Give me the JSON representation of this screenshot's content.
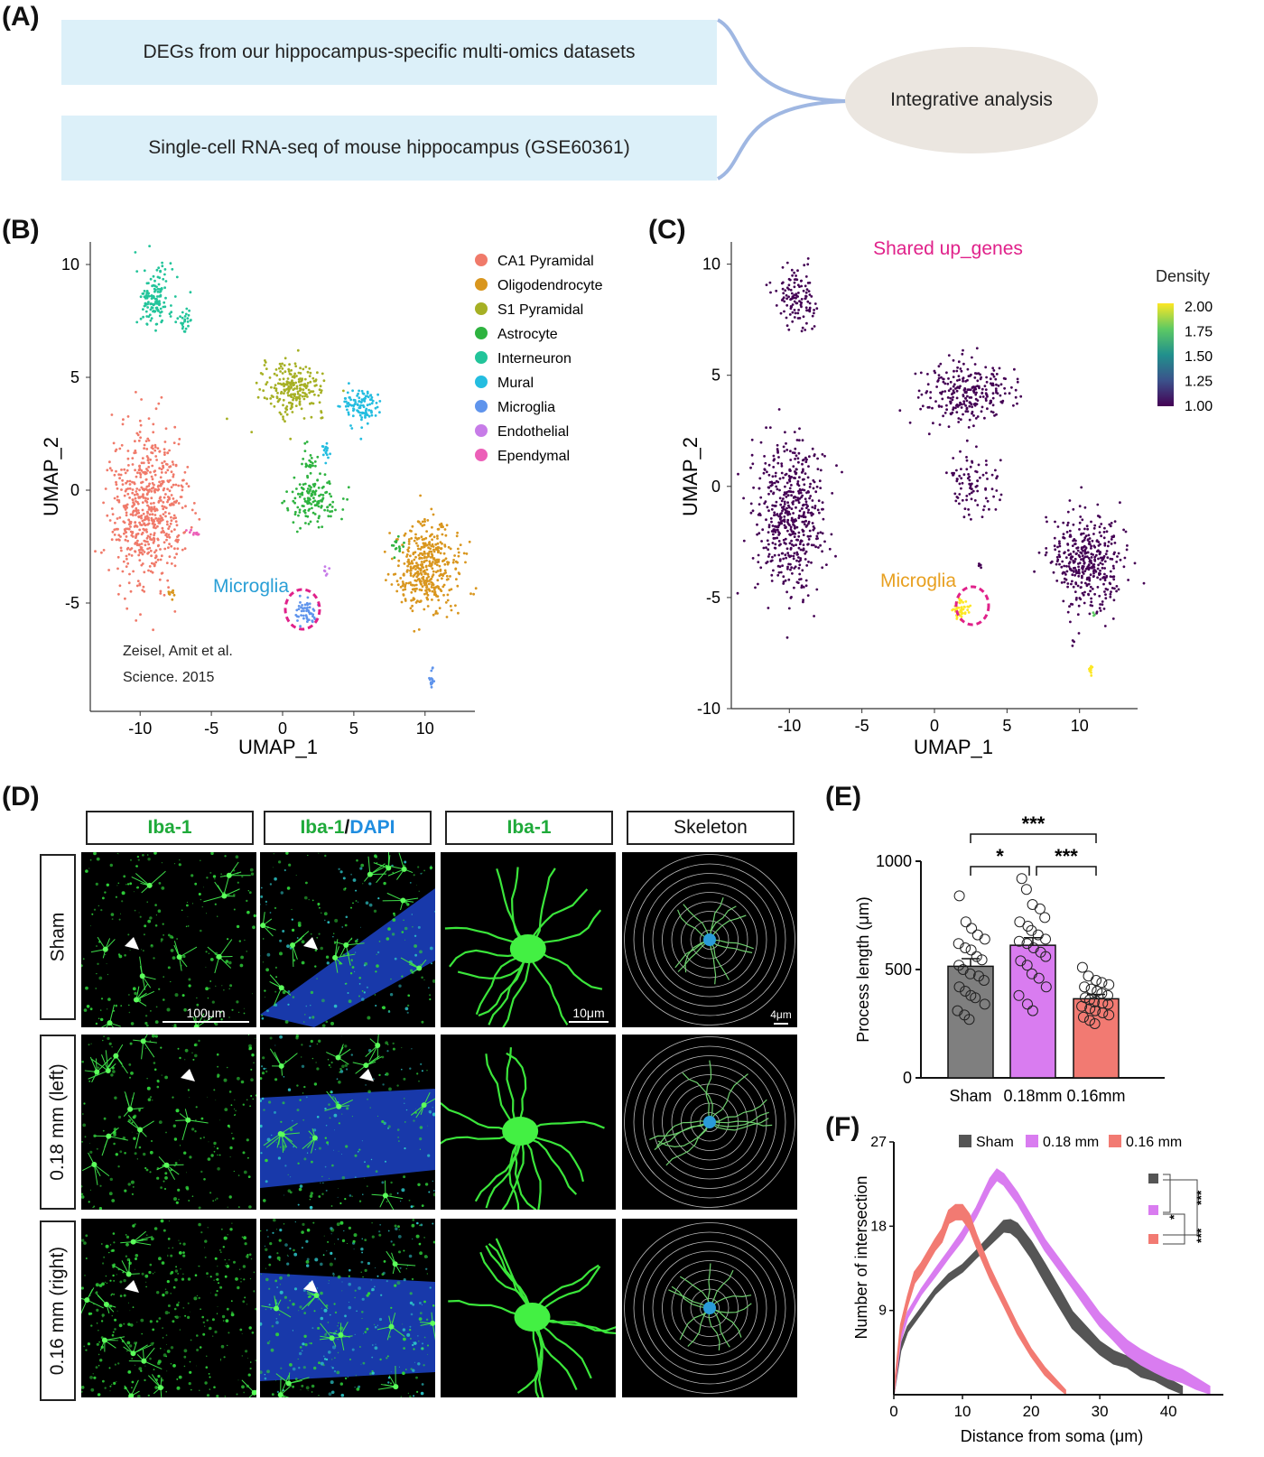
{
  "panelA": {
    "label": "(A)",
    "box1": "DEGs  from  our  hippocampus-specific  multi-omics  datasets",
    "box2": "Single-cell RNA-seq of mouse hippocampus (GSE60361)",
    "ellipse": "Integrative analysis"
  },
  "panelB": {
    "label": "(B)",
    "annotation": "Microglia",
    "citation_line1": "Zeisel, Amit et al.",
    "citation_line2": "Science. 2015"
  },
  "panelC": {
    "label": "(C)",
    "title": "Shared up_genes",
    "annotation": "Microglia",
    "colorbar_title": "Density",
    "colorbar_ticks": [
      "2.00",
      "1.75",
      "1.50",
      "1.25",
      "1.00"
    ]
  },
  "panelD": {
    "label": "(D)",
    "col_headers": [
      "Iba-1",
      "Iba-1",
      "/",
      "DAPI",
      "Iba-1",
      "Skeleton"
    ],
    "row_headers": [
      "Sham",
      "0.18 mm (left)",
      "0.16 mm (right)"
    ],
    "scalebars": [
      "100μm",
      "10μm",
      "4μm"
    ]
  },
  "panelE": {
    "label": "(E)"
  },
  "panelF": {
    "label": "(F)"
  },
  "chart_data": [
    {
      "panel": "B",
      "type": "scatter",
      "xlabel": "UMAP_1",
      "ylabel": "UMAP_2",
      "xticks": [
        -10,
        -5,
        0,
        5,
        10
      ],
      "yticks": [
        10,
        5,
        0,
        -5
      ],
      "xlim": [
        -13.5,
        13.5
      ],
      "ylim": [
        -9.8,
        11
      ],
      "legend_position": "top-right",
      "series": [
        {
          "name": "CA1 Pyramidal",
          "color": "#f07a6a"
        },
        {
          "name": "Oligodendrocyte",
          "color": "#d9961e"
        },
        {
          "name": "S1 Pyramidal",
          "color": "#a6b024"
        },
        {
          "name": "Astrocyte",
          "color": "#2eb340"
        },
        {
          "name": "Interneuron",
          "color": "#22c49a"
        },
        {
          "name": "Mural",
          "color": "#24bde0"
        },
        {
          "name": "Microglia",
          "color": "#5f94ec"
        },
        {
          "name": "Endothelial",
          "color": "#c77ce8"
        },
        {
          "name": "Ependymal",
          "color": "#ec5fb8"
        }
      ],
      "clusters": [
        {
          "series": "Interneuron",
          "cx": -9,
          "cy": 8.5,
          "rx": 1.3,
          "ry": 1.4,
          "n": 140
        },
        {
          "series": "Interneuron",
          "cx": -6.8,
          "cy": 7.5,
          "rx": 0.5,
          "ry": 0.6,
          "n": 25
        },
        {
          "series": "S1 Pyramidal",
          "cx": 0.8,
          "cy": 4.5,
          "rx": 2.2,
          "ry": 1.1,
          "n": 230
        },
        {
          "series": "Mural",
          "cx": 5.5,
          "cy": 3.7,
          "rx": 1.3,
          "ry": 0.9,
          "n": 110
        },
        {
          "series": "Mural",
          "cx": 3,
          "cy": 1.8,
          "rx": 0.3,
          "ry": 0.5,
          "n": 15
        },
        {
          "series": "Astrocyte",
          "cx": 2.2,
          "cy": -0.4,
          "rx": 1.8,
          "ry": 1.1,
          "n": 140
        },
        {
          "series": "Astrocyte",
          "cx": 1.8,
          "cy": 1.3,
          "rx": 0.5,
          "ry": 0.7,
          "n": 25
        },
        {
          "series": "CA1 Pyramidal",
          "cx": -9.5,
          "cy": -0.8,
          "rx": 2.5,
          "ry": 3.4,
          "n": 620
        },
        {
          "series": "Ependymal",
          "cx": -6.2,
          "cy": -1.9,
          "rx": 0.6,
          "ry": 0.15,
          "n": 10
        },
        {
          "series": "Oligodendrocyte",
          "cx": 10.2,
          "cy": -3.4,
          "rx": 2.3,
          "ry": 1.9,
          "n": 420
        },
        {
          "series": "Oligodendrocyte",
          "cx": -7.8,
          "cy": -4.5,
          "rx": 0.3,
          "ry": 0.4,
          "n": 8
        },
        {
          "series": "Astrocyte",
          "cx": 8.1,
          "cy": -2.5,
          "rx": 0.5,
          "ry": 0.4,
          "n": 15
        },
        {
          "series": "Microglia",
          "cx": 1.7,
          "cy": -5.4,
          "rx": 0.7,
          "ry": 0.6,
          "n": 50
        },
        {
          "series": "Endothelial",
          "cx": 3.1,
          "cy": -3.6,
          "rx": 0.2,
          "ry": 0.2,
          "n": 6
        },
        {
          "series": "Microglia",
          "cx": 10.5,
          "cy": -8.4,
          "rx": 0.2,
          "ry": 0.4,
          "n": 15
        }
      ]
    },
    {
      "panel": "C",
      "type": "scatter",
      "xlabel": "UMAP_1",
      "ylabel": "UMAP_2",
      "xticks": [
        -10,
        -5,
        0,
        5,
        10
      ],
      "yticks": [
        10,
        5,
        0,
        -5,
        -10
      ],
      "xlim": [
        -14,
        14
      ],
      "ylim": [
        -10,
        11
      ],
      "color_scale": {
        "min": 1.0,
        "max": 2.0,
        "colors": [
          "#440154",
          "#3b528b",
          "#21908d",
          "#5dc963",
          "#fde725"
        ]
      },
      "clusters": [
        {
          "density": 1.0,
          "cx": -9.5,
          "cy": 8.5,
          "rx": 1.3,
          "ry": 1.4,
          "n": 120
        },
        {
          "density": 1.0,
          "cx": 2.0,
          "cy": 4.2,
          "rx": 3.2,
          "ry": 1.4,
          "n": 260
        },
        {
          "density": 1.0,
          "cx": 2.5,
          "cy": 0.0,
          "rx": 1.8,
          "ry": 1.6,
          "n": 90
        },
        {
          "density": 1.0,
          "cx": -10.0,
          "cy": -1.5,
          "rx": 2.4,
          "ry": 3.5,
          "n": 520
        },
        {
          "density": 1.0,
          "cx": 10.5,
          "cy": -3.3,
          "rx": 2.3,
          "ry": 2.2,
          "n": 400
        },
        {
          "density": 2.0,
          "cx": 1.8,
          "cy": -5.5,
          "rx": 0.6,
          "ry": 0.5,
          "n": 45
        },
        {
          "density": 2.0,
          "cx": 10.8,
          "cy": -8.3,
          "rx": 0.15,
          "ry": 0.35,
          "n": 10
        },
        {
          "density": 1.8,
          "cx": 11.0,
          "cy": -5.8,
          "rx": 0.1,
          "ry": 0.1,
          "n": 3
        },
        {
          "density": 1.0,
          "cx": 3.2,
          "cy": -3.6,
          "rx": 0.15,
          "ry": 0.15,
          "n": 5
        }
      ]
    },
    {
      "panel": "E",
      "type": "bar",
      "ylabel": "Process length (μm)",
      "categories": [
        "Sham",
        "0.18mm",
        "0.16mm"
      ],
      "values": [
        515,
        612,
        365
      ],
      "errors": [
        35,
        35,
        20
      ],
      "colors": [
        "#7f7f7f",
        "#d97cf0",
        "#f27a72"
      ],
      "ylim": [
        0,
        1000
      ],
      "yticks": [
        0,
        500,
        1000
      ],
      "points": [
        [
          840,
          720,
          690,
          660,
          640,
          620,
          600,
          590,
          560,
          545,
          520,
          500,
          480,
          470,
          450,
          420,
          400,
          380,
          370,
          340,
          310,
          290,
          270
        ],
        [
          920,
          870,
          800,
          780,
          740,
          720,
          700,
          680,
          660,
          640,
          630,
          620,
          600,
          580,
          560,
          540,
          520,
          480,
          460,
          420,
          380,
          340,
          310
        ],
        [
          510,
          470,
          450,
          440,
          430,
          420,
          410,
          400,
          390,
          380,
          370,
          360,
          350,
          345,
          340,
          330,
          320,
          310,
          300,
          290,
          280,
          265,
          250
        ]
      ],
      "significance": [
        {
          "from": 0,
          "to": 2,
          "label": "***"
        },
        {
          "from": 0,
          "to": 1,
          "label": "*"
        },
        {
          "from": 1,
          "to": 2,
          "label": "***"
        }
      ]
    },
    {
      "panel": "F",
      "type": "area",
      "xlabel": "Distance from soma (μm)",
      "ylabel": "Number of intersection",
      "xlim": [
        0,
        48
      ],
      "ylim": [
        0,
        27
      ],
      "xticks": [
        0,
        10,
        20,
        30,
        40
      ],
      "yticks": [
        9,
        18,
        27
      ],
      "legend_position": "top",
      "series": [
        {
          "name": "Sham",
          "color": "#555555",
          "x": [
            0,
            1,
            2,
            4,
            6,
            8,
            10,
            12,
            14,
            16,
            17,
            18,
            20,
            22,
            24,
            26,
            28,
            30,
            32,
            34,
            36,
            38,
            40,
            42
          ],
          "y": [
            0,
            5,
            7,
            9,
            11,
            12.5,
            13.5,
            15,
            16.5,
            18,
            18,
            17.5,
            15.5,
            13,
            10.5,
            8,
            6.5,
            5,
            4,
            3.5,
            2.5,
            2,
            1.2,
            0.5
          ],
          "band": [
            0.3,
            0.3,
            0.3,
            0.3,
            0.3,
            0.4,
            0.4,
            0.4,
            0.5,
            0.6,
            0.7,
            0.8,
            0.9,
            1.0,
            1.0,
            0.9,
            0.8,
            0.7,
            0.7,
            0.6,
            0.6,
            0.5,
            0.5,
            0.4
          ]
        },
        {
          "name": "0.18 mm",
          "color": "#d97cf0",
          "x": [
            0,
            1,
            2,
            4,
            6,
            8,
            10,
            12,
            14,
            15,
            16,
            18,
            20,
            22,
            24,
            26,
            28,
            30,
            32,
            34,
            36,
            38,
            40,
            42,
            44,
            46
          ],
          "y": [
            0,
            6,
            8.5,
            11,
            13,
            15,
            17,
            19.5,
            22.5,
            23.5,
            23,
            21,
            18.5,
            16,
            14,
            12,
            10,
            8,
            6.5,
            5,
            4,
            3.2,
            2.5,
            2,
            1.2,
            0.5
          ],
          "band": [
            0.3,
            0.3,
            0.3,
            0.3,
            0.4,
            0.4,
            0.5,
            0.5,
            0.6,
            0.6,
            0.6,
            0.6,
            0.6,
            0.6,
            0.6,
            0.6,
            0.7,
            0.7,
            0.7,
            0.8,
            0.8,
            0.8,
            0.8,
            0.7,
            0.6,
            0.4
          ]
        },
        {
          "name": "0.16 mm",
          "color": "#f27a72",
          "x": [
            0,
            1,
            2,
            3,
            4,
            6,
            7,
            8,
            9,
            10,
            11,
            12,
            14,
            16,
            18,
            20,
            22,
            24,
            25
          ],
          "y": [
            0,
            7,
            10,
            12.5,
            13.5,
            16,
            17,
            19,
            19.5,
            19.5,
            18.5,
            16.5,
            13,
            10,
            7,
            4.5,
            2.5,
            1,
            0.3
          ],
          "band": [
            0.4,
            0.5,
            0.5,
            0.6,
            0.6,
            0.6,
            0.7,
            0.7,
            0.8,
            0.8,
            0.8,
            0.7,
            0.6,
            0.5,
            0.5,
            0.4,
            0.4,
            0.3,
            0.2
          ]
        }
      ],
      "significance": [
        {
          "pair": [
            "Sham",
            "0.18 mm"
          ],
          "label": "***"
        },
        {
          "pair": [
            "Sham",
            "0.16 mm"
          ],
          "label": "*"
        },
        {
          "pair": [
            "0.18 mm",
            "0.16 mm"
          ],
          "label": "***"
        }
      ]
    }
  ]
}
